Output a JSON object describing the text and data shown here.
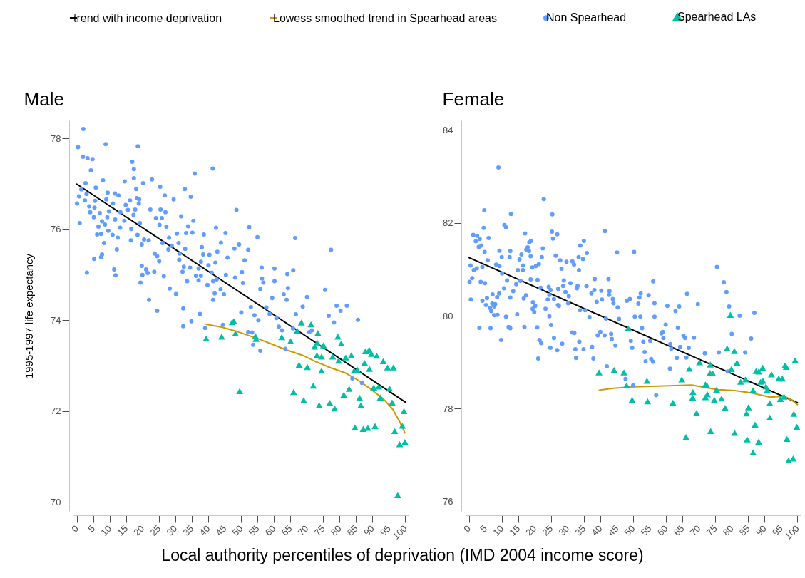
{
  "chart_data": [
    {
      "type": "scatter",
      "title": "Male",
      "xlabel": "Local authority percentiles of deprivation (IMD 2004 income score)",
      "ylabel": "1995-1997 life expectancy",
      "xlim": [
        -1,
        101
      ],
      "ylim": [
        69.8,
        78.4
      ],
      "xticks": [
        0,
        5,
        10,
        15,
        20,
        25,
        30,
        35,
        40,
        45,
        50,
        55,
        60,
        65,
        70,
        75,
        80,
        85,
        90,
        95,
        100
      ],
      "yticks": [
        70,
        72,
        74,
        76,
        78
      ],
      "legend": "top",
      "series": [
        {
          "name": "trend with income deprivation",
          "type": "line",
          "color": "#000000",
          "x": [
            0,
            100
          ],
          "values": [
            77.0,
            72.2
          ]
        },
        {
          "name": "Lowess smoothed trend in Spearhead areas",
          "type": "line",
          "color": "#cc9900",
          "x": [
            39.4,
            44.1,
            48.5,
            55.7,
            63.7,
            68.7,
            72.4,
            77.4,
            81.8,
            86.1,
            89.0,
            93.3,
            96.2,
            98.4,
            99.9
          ],
          "values": [
            73.91,
            73.85,
            73.76,
            73.58,
            73.35,
            73.23,
            73.1,
            72.95,
            72.84,
            72.66,
            72.51,
            72.27,
            72.04,
            71.75,
            71.52
          ]
        },
        {
          "name": "Non Spearhead",
          "type": "scatter",
          "marker": "circle",
          "color": "#619cff",
          "x": [
            2.0,
            0.4,
            8.8,
            18.6,
            1.9,
            3.3,
            4.8,
            16.9,
            17.4,
            4.3,
            17.4,
            41.4,
            35.9,
            8.0,
            2.7,
            14.6,
            22.9,
            20.2,
            25.4,
            32.9,
            18.1,
            5.8,
            1.4,
            3.0,
            9.4,
            11.6,
            12.7,
            0.7,
            26.8,
            34.7,
            29.5,
            18.3,
            19.0,
            2.5,
            5.6,
            0.1,
            9.0,
            11.0,
            14.9,
            16.2,
            18.9,
            3.8,
            5.4,
            15.6,
            17.8,
            22.4,
            25.5,
            27.0,
            48.6,
            4.1,
            9.8,
            7.0,
            17.3,
            13.3,
            5.2,
            9.3,
            11.7,
            14.5,
            24.1,
            25.9,
            31.8,
            35.5,
            7.7,
            0.9,
            8.6,
            6.6,
            13.2,
            16.6,
            19.2,
            25.2,
            27.3,
            33.9,
            42.4,
            52.5,
            9.6,
            6.2,
            7.4,
            10.9,
            12.5,
            18.5,
            20.5,
            21.9,
            28.1,
            30.5,
            33.3,
            35.2,
            38.7,
            45.3,
            16.5,
            8.3,
            19.8,
            26.1,
            28.9,
            31.0,
            55.0,
            66.5,
            43.9,
            49.4,
            12.2,
            27.9,
            33.0,
            38.1,
            48.0,
            52.2,
            77.4,
            7.7,
            23.7,
            31.3,
            38.5,
            40.4,
            42.8,
            7.4,
            5.3,
            24.5,
            45.9,
            31.2,
            25.1,
            51.1,
            37.8,
            42.2,
            32.6,
            34.5,
            37.1,
            40.1,
            56.3,
            60.2,
            19.8,
            21.1,
            11.4,
            3.1,
            11.8,
            20.0,
            21.6,
            23.6,
            26.5,
            32.2,
            36.3,
            37.8,
            41.1,
            45.4,
            48.2,
            50.3,
            64.1,
            65.9,
            33.6,
            37.1,
            41.5,
            42.6,
            19.4,
            50.6,
            56.4,
            56.8,
            60.2,
            39.8,
            28.3,
            43.8,
            64.3,
            75.6,
            30.2,
            42.0,
            44.8,
            55.9,
            41.5,
            22.0,
            59.5,
            63.0,
            63.9,
            70.1,
            68.8,
            79.1,
            82.2,
            24.5,
            32.4,
            53.0,
            57.7,
            80.3,
            37.5,
            50.1,
            54.1,
            58.7,
            66.7,
            76.7,
            55.3,
            34.9,
            60.8,
            85.6,
            78.3,
            83.9,
            86.8,
            53.7,
            55.9,
            63.5,
            52.2,
            53.4,
            62.5,
            70.8,
            71.6,
            39.1,
            32.4,
            44.5,
            65.8,
            61.5
          ],
          "values": [
            78.21,
            77.81,
            77.88,
            77.83,
            77.6,
            77.57,
            77.55,
            77.49,
            77.33,
            77.3,
            77.13,
            77.34,
            77.23,
            77.08,
            77.02,
            77.06,
            77.1,
            77.02,
            76.94,
            76.89,
            76.89,
            76.92,
            76.88,
            76.78,
            76.81,
            76.79,
            76.75,
            76.73,
            76.75,
            76.72,
            76.66,
            76.69,
            76.66,
            76.64,
            76.63,
            76.57,
            76.66,
            76.57,
            76.54,
            76.64,
            76.57,
            76.51,
            76.48,
            76.43,
            76.44,
            76.44,
            76.44,
            76.38,
            76.43,
            76.38,
            76.4,
            76.36,
            76.32,
            76.38,
            76.27,
            76.27,
            76.22,
            76.19,
            76.25,
            76.25,
            76.29,
            76.19,
            76.18,
            76.14,
            76.11,
            76.06,
            76.04,
            76.01,
            76.14,
            76.1,
            76.06,
            76.07,
            76.04,
            76.05,
            75.97,
            75.89,
            75.9,
            75.88,
            75.82,
            75.88,
            75.78,
            75.76,
            75.82,
            75.91,
            75.92,
            75.93,
            75.89,
            75.92,
            75.76,
            75.7,
            75.67,
            75.7,
            75.64,
            75.7,
            75.83,
            75.81,
            75.71,
            75.67,
            75.56,
            75.56,
            75.57,
            75.61,
            75.58,
            75.55,
            75.55,
            75.45,
            75.47,
            75.47,
            75.45,
            75.44,
            75.51,
            75.39,
            75.35,
            75.41,
            75.38,
            75.33,
            75.3,
            75.32,
            75.29,
            75.27,
            75.18,
            75.16,
            75.14,
            75.21,
            75.16,
            75.14,
            75.2,
            75.12,
            75.12,
            75.05,
            74.99,
            75.0,
            75.04,
            75.07,
            74.97,
            75.07,
            74.98,
            74.98,
            75.05,
            75.0,
            74.94,
            75.06,
            75.02,
            75.1,
            74.86,
            74.88,
            74.86,
            74.9,
            74.83,
            74.82,
            74.92,
            74.83,
            74.86,
            74.78,
            74.7,
            74.68,
            74.71,
            74.67,
            74.58,
            74.59,
            74.57,
            74.69,
            74.45,
            74.45,
            74.49,
            74.57,
            74.45,
            74.51,
            74.3,
            74.32,
            74.32,
            74.21,
            74.26,
            74.29,
            74.28,
            74.21,
            74.14,
            74.17,
            74.11,
            74.14,
            74.13,
            74.1,
            74.0,
            73.98,
            74.05,
            74.01,
            73.95,
            72.72,
            72.62,
            73.46,
            73.33,
            73.37,
            73.74,
            73.73,
            73.78,
            73.74,
            73.78,
            73.83,
            73.87,
            73.9,
            73.82,
            73.86
          ]
        },
        {
          "name": "Spearhead LAs",
          "type": "scatter",
          "marker": "triangle",
          "color": "#00bfa5",
          "x": [
            39.4,
            44.1,
            47.3,
            47.8,
            48.3,
            49.6,
            54.4,
            54.6,
            62.4,
            65.1,
            66.0,
            67.1,
            67.7,
            68.4,
            69.1,
            70.2,
            71.3,
            72.0,
            72.4,
            73.1,
            73.4,
            73.2,
            73.8,
            74.5,
            74.5,
            75.1,
            77.0,
            77.9,
            78.5,
            79.5,
            79.7,
            80.5,
            81.3,
            81.9,
            82.9,
            83.6,
            84.4,
            84.7,
            85.4,
            86.1,
            86.5,
            87.2,
            87.6,
            87.9,
            88.6,
            89.0,
            89.1,
            89.7,
            90.4,
            90.8,
            91.3,
            91.9,
            92.4,
            93.3,
            94.6,
            95.2,
            96.0,
            96.4,
            96.8,
            97.7,
            98.3,
            99.1,
            99.6,
            99.9
          ],
          "values": [
            73.6,
            73.64,
            73.96,
            73.98,
            73.71,
            72.44,
            73.65,
            73.59,
            73.63,
            73.54,
            72.42,
            73.77,
            73.02,
            73.95,
            72.24,
            72.97,
            73.91,
            72.56,
            73.42,
            73.23,
            73.72,
            73.51,
            72.13,
            73.2,
            72.89,
            73.45,
            72.18,
            73.2,
            72.06,
            73.64,
            73.11,
            73.49,
            72.36,
            73.18,
            72.49,
            73.23,
            72.89,
            71.64,
            72.91,
            72.29,
            72.13,
            71.61,
            73.06,
            73.32,
            71.63,
            73.35,
            72.93,
            73.26,
            72.52,
            71.67,
            73.22,
            72.54,
            72.3,
            73.1,
            72.96,
            72.5,
            72.19,
            72.96,
            71.56,
            70.15,
            71.27,
            71.68,
            72.0,
            71.32
          ]
        }
      ]
    },
    {
      "type": "scatter",
      "title": "Female",
      "xlim": [
        -1,
        101
      ],
      "ylim": [
        75.8,
        84.2
      ],
      "xticks": [
        0,
        5,
        10,
        15,
        20,
        25,
        30,
        35,
        40,
        45,
        50,
        55,
        60,
        65,
        70,
        75,
        80,
        85,
        90,
        95,
        100
      ],
      "yticks": [
        76,
        78,
        80,
        82,
        84
      ],
      "series": [
        {
          "type": "line",
          "color": "#000000",
          "x": [
            0,
            100
          ],
          "values": [
            81.25,
            78.13
          ]
        },
        {
          "type": "line",
          "color": "#cc9900",
          "x": [
            39.7,
            44.0,
            49.8,
            59.2,
            67.9,
            70.8,
            75.8,
            80.9,
            85.9,
            91.7,
            96.0,
            98.2,
            100
          ],
          "values": [
            78.4,
            78.44,
            78.47,
            78.49,
            78.51,
            78.47,
            78.41,
            78.39,
            78.34,
            78.25,
            78.27,
            78.19,
            78.09
          ]
        },
        {
          "type": "scatter",
          "marker": "circle",
          "color": "#619cff",
          "x": [
            9.0,
            22.8,
            4.7,
            12.8,
            25.4,
            4.5,
            10.8,
            11.3,
            41.4,
            1.3,
            2.5,
            17.1,
            25.3,
            26.9,
            6.0,
            3.3,
            2.1,
            18.9,
            18.4,
            25.6,
            35.0,
            33.9,
            17.9,
            3.8,
            3.0,
            22.5,
            9.3,
            12.6,
            17.5,
            18.3,
            45.1,
            50.3,
            35.9,
            16.0,
            4.8,
            10.0,
            12.4,
            18.8,
            22.2,
            26.4,
            33.4,
            15.4,
            27.8,
            29.7,
            31.5,
            34.7,
            5.7,
            16.5,
            32.0,
            0.5,
            1.5,
            2.4,
            4.1,
            8.3,
            9.3,
            14.9,
            16.4,
            21.3,
            20.4,
            19.3,
            28.2,
            33.5,
            10.1,
            1.0,
            11.6,
            3.6,
            4.9,
            0.2,
            18.8,
            20.9,
            28.9,
            30.9,
            38.3,
            42.5,
            56.1,
            14.4,
            15.7,
            21.8,
            10.7,
            24.3,
            24.9,
            28.7,
            27.2,
            33.1,
            35.8,
            32.9,
            13.5,
            38.2,
            40.3,
            42.8,
            7.2,
            9.2,
            29.4,
            37.3,
            42.7,
            52.3,
            54.7,
            66.4,
            5.5,
            8.6,
            12.6,
            17.4,
            16.7,
            24.5,
            30.4,
            43.8,
            0.6,
            4.1,
            24.0,
            25.9,
            48.1,
            49.0,
            51.9,
            7.1,
            8.0,
            19.5,
            30.2,
            38.9,
            40.5,
            44.0,
            51.6,
            56.5,
            69.7,
            75.5,
            77.6,
            78.4,
            79.2,
            5.2,
            7.7,
            20.2,
            27.1,
            27.4,
            45.3,
            60.4,
            64.0,
            62.9,
            6.4,
            6.8,
            19.4,
            19.9,
            23.3,
            33.8,
            35.4,
            7.7,
            8.7,
            11.3,
            14.7,
            24.5,
            36.7,
            41.7,
            50.5,
            52.2,
            56.5,
            82.4,
            86.9,
            45.7,
            59.9,
            3.2,
            6.6,
            12.1,
            12.6,
            16.9,
            20.8,
            25.0,
            52.7,
            63.6,
            9.8,
            21.1,
            21.5,
            22.0,
            25.9,
            24.8,
            26.9,
            28.4,
            31.5,
            32.1,
            33.6,
            32.4,
            32.6,
            34.9,
            37.5,
            37.9,
            39.2,
            40.0,
            41.3,
            42.0,
            43.3,
            43.5,
            44.6,
            47.7,
            49.3,
            49.7,
            50.0,
            53.1,
            53.5,
            53.8,
            55.2,
            55.5,
            56.0,
            57.0,
            58.6,
            59.0,
            59.2,
            61.3,
            61.6,
            63.3,
            64.3,
            65.3,
            65.8,
            66.2,
            66.9,
            68.5,
            71.8,
            76.1,
            80.0,
            84.1,
            85.9,
            61.2,
            78.8
          ],
          "values": [
            83.19,
            82.51,
            82.27,
            82.19,
            82.18,
            81.89,
            81.95,
            81.9,
            81.82,
            81.74,
            81.72,
            81.77,
            81.81,
            81.75,
            81.67,
            81.65,
            81.6,
            81.61,
            81.58,
            81.66,
            81.61,
            81.51,
            81.47,
            81.51,
            81.48,
            81.45,
            81.4,
            81.39,
            81.42,
            81.39,
            81.36,
            81.37,
            81.35,
            81.32,
            81.37,
            81.26,
            81.26,
            81.28,
            81.26,
            81.29,
            81.26,
            81.21,
            81.19,
            81.16,
            81.17,
            81.22,
            81.19,
            81.08,
            81.1,
            81.08,
            80.98,
            81.02,
            81.05,
            81.1,
            81.07,
            80.98,
            80.98,
            81.11,
            81.07,
            81.04,
            81.01,
            80.98,
            80.91,
            80.81,
            80.76,
            80.73,
            80.7,
            80.73,
            80.78,
            80.77,
            80.76,
            80.7,
            80.79,
            80.79,
            80.74,
            80.68,
            80.75,
            80.6,
            80.59,
            80.62,
            80.55,
            80.64,
            80.58,
            80.64,
            80.64,
            80.59,
            80.53,
            80.55,
            80.54,
            80.53,
            80.46,
            80.48,
            80.51,
            80.48,
            80.45,
            80.48,
            80.44,
            80.47,
            80.38,
            80.4,
            80.39,
            80.44,
            80.37,
            80.45,
            80.42,
            80.36,
            80.35,
            80.32,
            80.35,
            80.36,
            80.32,
            80.36,
            80.39,
            80.26,
            80.25,
            80.29,
            80.27,
            80.3,
            80.35,
            80.27,
            80.26,
            80.27,
            80.25,
            81.05,
            80.72,
            80.51,
            80.2,
            80.23,
            80.2,
            80.21,
            80.23,
            80.21,
            80.18,
            80.21,
            80.2,
            80.1,
            80.17,
            80.1,
            80.15,
            80.08,
            80.15,
            80.12,
            80.12,
            80.01,
            80.02,
            79.98,
            80.03,
            79.99,
            79.97,
            79.94,
            79.98,
            79.98,
            79.98,
            80.0,
            80.06,
            79.93,
            79.81,
            79.74,
            79.73,
            79.76,
            79.73,
            79.76,
            79.75,
            79.8,
            79.73,
            79.74,
            79.48,
            79.08,
            79.48,
            79.41,
            79.52,
            79.31,
            79.26,
            79.4,
            79.64,
            79.63,
            79.44,
            79.28,
            79.09,
            79.28,
            79.33,
            79.08,
            79.58,
            79.65,
            79.58,
            78.91,
            79.61,
            79.5,
            79.36,
            78.64,
            79.46,
            79.31,
            78.5,
            79.44,
            79.22,
            79.02,
            79.46,
            79.07,
            79.01,
            78.29,
            79.62,
            79.65,
            79.52,
            79.39,
            79.29,
            79.09,
            79.33,
            79.57,
            79.52,
            79.1,
            79.31,
            79.53,
            79.19,
            79.21,
            79.61,
            79.21,
            79.51,
            78.86,
            78.8
          ]
        },
        {
          "type": "scatter",
          "marker": "triangle",
          "color": "#00bfa5",
          "x": [
            79.6,
            48.5,
            78.6,
            80.8,
            81.6,
            70.2,
            67.1,
            73.5,
            73.4,
            74.2,
            79.9,
            87.4,
            88.2,
            89.4,
            92.1,
            96.2,
            96.6,
            99.3,
            94.3,
            95.4,
            39.6,
            44.2,
            47.2,
            48.0,
            54.2,
            64.8,
            72.0,
            72.4,
            84.2,
            82.7,
            88.8,
            89.5,
            90.4,
            90.8,
            86.5,
            75.4,
            68.2,
            68.1,
            72.6,
            72.0,
            74.7,
            76.9,
            49.7,
            54.4,
            62.1,
            78.0,
            85.1,
            84.5,
            91.6,
            94.8,
            95.9,
            69.3,
            98.9,
            91.6,
            99.8,
            87.1,
            73.6,
            80.9,
            66.1,
            84.7,
            88.2,
            96.8,
            86.5,
            97.3,
            98.7
          ],
          "values": [
            80.02,
            79.73,
            79.3,
            79.24,
            78.99,
            79.0,
            78.86,
            78.95,
            78.77,
            78.76,
            78.85,
            78.81,
            78.8,
            78.88,
            78.74,
            78.93,
            78.9,
            79.04,
            78.65,
            78.65,
            78.78,
            78.83,
            78.78,
            78.5,
            78.6,
            78.63,
            78.52,
            78.51,
            78.63,
            78.58,
            78.58,
            78.6,
            78.48,
            78.4,
            78.4,
            78.41,
            78.36,
            78.24,
            78.31,
            78.25,
            78.19,
            78.22,
            78.19,
            78.16,
            78.13,
            78.02,
            78.03,
            77.9,
            78.12,
            78.21,
            78.26,
            77.91,
            77.89,
            77.81,
            77.61,
            77.66,
            77.52,
            77.48,
            77.39,
            77.34,
            77.29,
            77.35,
            77.06,
            76.89,
            76.93
          ]
        }
      ]
    }
  ]
}
